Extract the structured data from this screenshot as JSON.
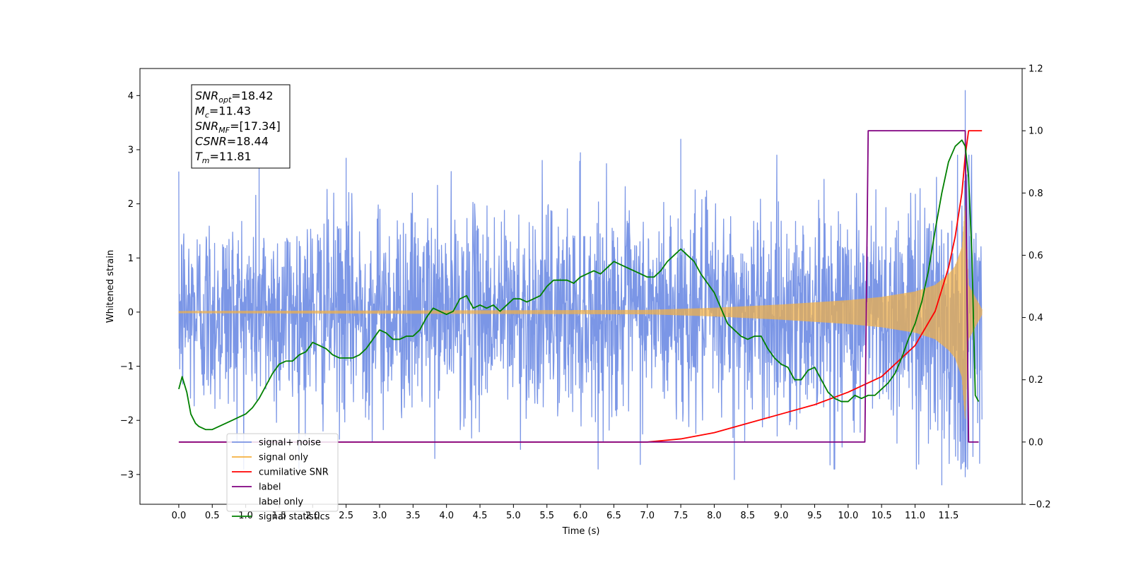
{
  "chart_data": {
    "type": "line",
    "title": "",
    "xlabel": "Time (s)",
    "ylabel": "Whitened strain",
    "xlim": [
      -0.58,
      12.6
    ],
    "ylim": [
      -3.55,
      4.5
    ],
    "ylim_right": [
      -0.2,
      1.2
    ],
    "grid": false,
    "legend_position": "bottom-left",
    "x_ticks": [
      "0.0",
      "0.5",
      "1.0",
      "1.5",
      "2.0",
      "2.5",
      "3.0",
      "3.5",
      "4.0",
      "4.5",
      "5.0",
      "5.5",
      "6.0",
      "6.5",
      "7.0",
      "7.5",
      "8.0",
      "8.5",
      "9.0",
      "9.5",
      "10.0",
      "10.5",
      "11.0",
      "11.5"
    ],
    "y_ticks_left": [
      "4",
      "3",
      "2",
      "1",
      "0",
      "−1",
      "−2",
      "−3"
    ],
    "y_ticks_right": [
      "1.2",
      "1.0",
      "0.8",
      "0.6",
      "0.4",
      "0.2",
      "0.0",
      "−0.2"
    ],
    "annotation_lines": [
      {
        "name": "SNR",
        "sub": "opt",
        "value": "=18.42"
      },
      {
        "name": "M",
        "sub": "c",
        "value": "=11.43"
      },
      {
        "name": "SNR",
        "sub": "MF",
        "value": "=[17.34]"
      },
      {
        "name": "CSNR",
        "sub": "",
        "value": "=18.44"
      },
      {
        "name": "T",
        "sub": "m",
        "value": "=11.81"
      }
    ],
    "series": [
      {
        "name": "signal+ noise",
        "color": "#7b96e6",
        "axis": "left",
        "description_range": [
          0.0,
          12.0
        ],
        "envelope_x": [
          0,
          1,
          2,
          3,
          4,
          5,
          6,
          7,
          8,
          9,
          10,
          10.5,
          11,
          11.5,
          11.75,
          12.0
        ],
        "envelope_amp": [
          1.3,
          1.3,
          1.3,
          1.3,
          1.3,
          1.3,
          1.3,
          1.3,
          1.3,
          1.35,
          1.4,
          1.45,
          1.55,
          1.8,
          2.2,
          1.5
        ],
        "peaks": [
          [
            1.2,
            2.85
          ],
          [
            2.5,
            2.85
          ],
          [
            6.0,
            2.95
          ],
          [
            7.5,
            3.2
          ],
          [
            11.75,
            4.1
          ],
          [
            11.4,
            -3.2
          ],
          [
            8.3,
            -3.1
          ],
          [
            11.75,
            -3.05
          ]
        ]
      },
      {
        "name": "signal only",
        "color": "#f5b041",
        "axis": "left",
        "chirp_env_x": [
          0.0,
          7.0,
          8.0,
          9.0,
          10.0,
          10.5,
          11.0,
          11.3,
          11.5,
          11.6,
          11.7,
          11.75,
          11.8,
          12.0
        ],
        "chirp_env_amp": [
          0.02,
          0.04,
          0.08,
          0.14,
          0.22,
          0.28,
          0.38,
          0.5,
          0.7,
          0.85,
          1.2,
          2.0,
          0.5,
          0.05
        ]
      },
      {
        "name": "cumilative SNR",
        "color": "#ff0000",
        "axis": "right",
        "x": [
          0.0,
          6.5,
          7.0,
          7.5,
          8.0,
          8.5,
          9.0,
          9.5,
          10.0,
          10.5,
          11.0,
          11.3,
          11.5,
          11.6,
          11.7,
          11.75,
          11.8,
          11.85,
          12.0
        ],
        "y": [
          0.0,
          0.0,
          0.0,
          0.01,
          0.03,
          0.06,
          0.09,
          0.12,
          0.16,
          0.21,
          0.31,
          0.42,
          0.56,
          0.66,
          0.8,
          0.92,
          1.0,
          1.0,
          1.0
        ]
      },
      {
        "name": "label",
        "color": "#800080",
        "axis": "right",
        "x": [
          0.0,
          10.25,
          10.3,
          11.75,
          11.8,
          11.95
        ],
        "y": [
          0.0,
          0.0,
          1.0,
          1.0,
          0.0,
          0.0
        ]
      },
      {
        "name": "label only",
        "color": "#ffffff",
        "axis": "right",
        "x": [],
        "y": []
      },
      {
        "name": "signal statistics",
        "color": "#008000",
        "axis": "right",
        "x": [
          0.0,
          0.05,
          0.12,
          0.18,
          0.25,
          0.3,
          0.4,
          0.5,
          0.6,
          0.7,
          0.8,
          0.9,
          1.0,
          1.1,
          1.2,
          1.3,
          1.4,
          1.5,
          1.6,
          1.7,
          1.8,
          1.9,
          2.0,
          2.1,
          2.2,
          2.3,
          2.4,
          2.5,
          2.6,
          2.7,
          2.8,
          2.9,
          3.0,
          3.1,
          3.2,
          3.3,
          3.4,
          3.5,
          3.6,
          3.7,
          3.8,
          3.9,
          4.0,
          4.1,
          4.2,
          4.3,
          4.4,
          4.5,
          4.6,
          4.7,
          4.8,
          4.9,
          5.0,
          5.1,
          5.2,
          5.3,
          5.4,
          5.5,
          5.6,
          5.7,
          5.8,
          5.9,
          6.0,
          6.1,
          6.2,
          6.3,
          6.4,
          6.5,
          6.6,
          6.7,
          6.8,
          6.9,
          7.0,
          7.1,
          7.2,
          7.3,
          7.4,
          7.5,
          7.6,
          7.7,
          7.8,
          7.9,
          8.0,
          8.1,
          8.2,
          8.3,
          8.4,
          8.5,
          8.6,
          8.7,
          8.8,
          8.9,
          9.0,
          9.1,
          9.2,
          9.3,
          9.4,
          9.5,
          9.6,
          9.7,
          9.8,
          9.9,
          10.0,
          10.1,
          10.2,
          10.3,
          10.4,
          10.5,
          10.6,
          10.7,
          10.8,
          10.9,
          11.0,
          11.1,
          11.2,
          11.3,
          11.4,
          11.5,
          11.6,
          11.7,
          11.75,
          11.8,
          11.85,
          11.9,
          11.95
        ],
        "y": [
          0.17,
          0.21,
          0.16,
          0.09,
          0.06,
          0.05,
          0.04,
          0.04,
          0.05,
          0.06,
          0.07,
          0.08,
          0.09,
          0.11,
          0.14,
          0.18,
          0.22,
          0.25,
          0.26,
          0.26,
          0.28,
          0.29,
          0.32,
          0.31,
          0.3,
          0.28,
          0.27,
          0.27,
          0.27,
          0.28,
          0.3,
          0.33,
          0.36,
          0.35,
          0.33,
          0.33,
          0.34,
          0.34,
          0.36,
          0.4,
          0.43,
          0.42,
          0.41,
          0.42,
          0.46,
          0.47,
          0.43,
          0.44,
          0.43,
          0.44,
          0.42,
          0.44,
          0.46,
          0.46,
          0.45,
          0.46,
          0.47,
          0.5,
          0.52,
          0.52,
          0.52,
          0.51,
          0.53,
          0.54,
          0.55,
          0.54,
          0.56,
          0.58,
          0.57,
          0.56,
          0.55,
          0.54,
          0.53,
          0.53,
          0.55,
          0.58,
          0.6,
          0.62,
          0.6,
          0.58,
          0.54,
          0.51,
          0.48,
          0.43,
          0.38,
          0.36,
          0.34,
          0.33,
          0.34,
          0.34,
          0.3,
          0.27,
          0.25,
          0.24,
          0.2,
          0.2,
          0.23,
          0.24,
          0.2,
          0.16,
          0.14,
          0.13,
          0.13,
          0.15,
          0.14,
          0.15,
          0.15,
          0.17,
          0.19,
          0.22,
          0.27,
          0.33,
          0.38,
          0.45,
          0.55,
          0.68,
          0.8,
          0.9,
          0.95,
          0.97,
          0.95,
          0.85,
          0.6,
          0.15,
          0.13
        ]
      }
    ]
  }
}
